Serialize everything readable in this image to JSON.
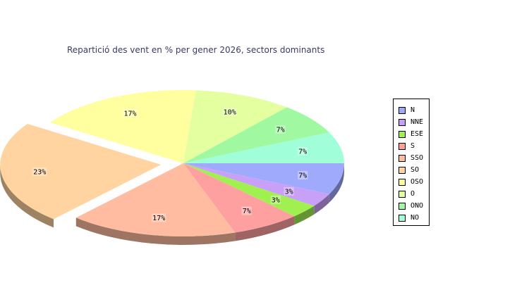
{
  "chart_data": {
    "type": "pie",
    "title": "Repartició des vent en % per gener 2026, sectors dominants",
    "categories": [
      "N",
      "NNE",
      "ESE",
      "S",
      "SSO",
      "SO",
      "OSO",
      "O",
      "ONO",
      "NO"
    ],
    "values": [
      7,
      3,
      3,
      7,
      17,
      23,
      17,
      10,
      7,
      7
    ],
    "value_labels": [
      "7%",
      "3%",
      "3%",
      "7%",
      "17%",
      "23%",
      "17%",
      "10%",
      "7%",
      "7%"
    ],
    "colors": [
      "#a0aafc",
      "#c8a0f8",
      "#a0f050",
      "#ffa0a0",
      "#ffbca0",
      "#ffd4a0",
      "#ffffa0",
      "#e4ffa0",
      "#a0f8a0",
      "#a0ffd8"
    ],
    "exploded": [
      "SO"
    ],
    "three_d": true,
    "legend": "right"
  }
}
